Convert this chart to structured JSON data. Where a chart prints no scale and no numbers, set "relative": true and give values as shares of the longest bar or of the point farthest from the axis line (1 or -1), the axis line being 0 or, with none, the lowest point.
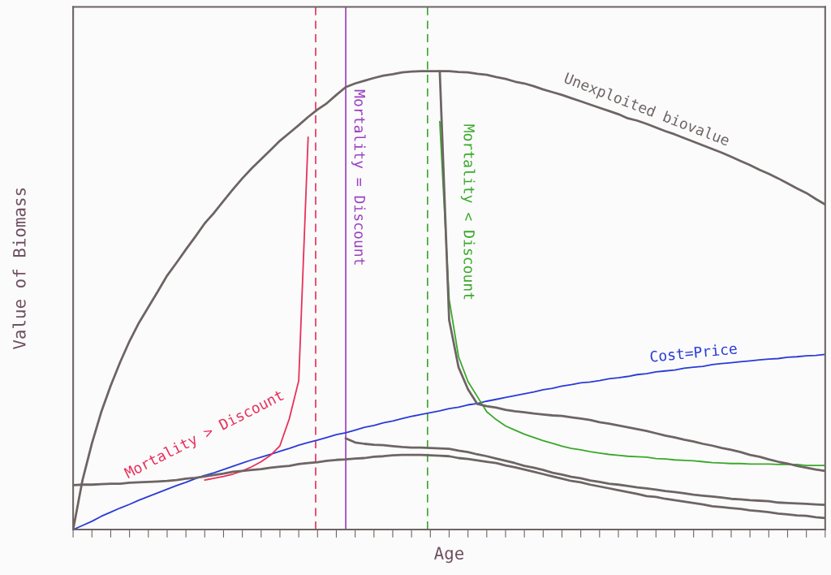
{
  "chart_data": {
    "type": "line",
    "relative": true,
    "xlabel": "Age",
    "ylabel": "Value of Biomass",
    "categories": [
      null,
      null,
      null,
      null,
      null,
      null,
      null,
      null,
      null,
      null,
      null,
      null,
      null,
      null,
      null,
      null,
      null,
      null,
      null,
      null,
      null,
      null,
      null,
      null,
      null,
      null,
      null,
      null,
      null,
      null,
      null,
      null,
      null,
      null,
      null,
      null,
      null,
      null,
      null,
      null,
      null,
      null,
      null,
      null,
      null,
      null,
      null,
      null,
      null,
      null,
      null,
      null,
      null,
      null,
      null,
      null,
      null,
      null,
      null,
      null,
      null,
      null,
      null,
      null,
      null,
      null,
      null,
      null,
      null,
      null,
      null,
      null,
      null,
      null,
      null,
      null,
      null,
      null,
      null,
      null,
      null
    ],
    "grid": false,
    "legend": false,
    "marker": "none",
    "line_style": "solid",
    "tick_labels": false,
    "annotations": [
      "Mortality = Discount"
    ],
    "series": [
      {
        "name": "Unexploited biovalue",
        "color": "#6e6464",
        "values": [
          0,
          0.108,
          0.188,
          0.257,
          0.314,
          0.365,
          0.411,
          0.451,
          0.485,
          0.519,
          0.554,
          0.582,
          0.611,
          0.639,
          0.668,
          0.691,
          0.717,
          0.742,
          0.766,
          0.788,
          0.808,
          0.828,
          0.848,
          0.865,
          0.882,
          0.9,
          0.916,
          0.93,
          0.948,
          0.965,
          0.973,
          0.979,
          0.985,
          0.99,
          0.993,
          0.997,
          0.999,
          1,
          1,
          1,
          1,
          0.998,
          0.997,
          0.994,
          0.992,
          0.987,
          0.983,
          0.977,
          0.973,
          0.967,
          0.96,
          0.954,
          0.948,
          0.941,
          0.934,
          0.927,
          0.92,
          0.913,
          0.906,
          0.897,
          0.892,
          0.885,
          0.877,
          0.869,
          0.862,
          0.854,
          0.846,
          0.838,
          0.83,
          0.822,
          0.813,
          0.804,
          0.795,
          0.785,
          0.776,
          0.766,
          0.755,
          0.744,
          0.734,
          0.721,
          0.709
        ]
      },
      {
        "name": "Cost=Price",
        "color": "#2a3bd8",
        "values": [
          0,
          0.009,
          0.018,
          0.029,
          0.038,
          0.047,
          0.055,
          0.064,
          0.072,
          0.08,
          0.088,
          0.096,
          0.103,
          0.111,
          0.118,
          0.124,
          0.131,
          0.138,
          0.145,
          0.152,
          0.158,
          0.164,
          0.171,
          0.177,
          0.184,
          0.19,
          0.195,
          0.201,
          0.207,
          0.211,
          0.217,
          0.223,
          0.227,
          0.233,
          0.237,
          0.242,
          0.247,
          0.251,
          0.255,
          0.259,
          0.264,
          0.267,
          0.272,
          0.275,
          0.28,
          0.284,
          0.288,
          0.292,
          0.296,
          0.3,
          0.305,
          0.308,
          0.313,
          0.316,
          0.32,
          0.322,
          0.325,
          0.329,
          0.331,
          0.334,
          0.338,
          0.34,
          0.344,
          0.346,
          0.348,
          0.352,
          0.354,
          0.356,
          0.36,
          0.362,
          0.364,
          0.366,
          0.368,
          0.37,
          0.372,
          0.373,
          0.376,
          0.377,
          0.379,
          0.38,
          0.382
        ]
      },
      {
        "name": "Mortality > Discount",
        "color": "#e8305a",
        "values": [
          null,
          null,
          null,
          null,
          null,
          null,
          null,
          null,
          null,
          null,
          null,
          null,
          null,
          null,
          0.108,
          0.112,
          0.116,
          0.121,
          0.128,
          0.137,
          0.148,
          0.162,
          0.183,
          0.242,
          0.325,
          0.856,
          null,
          null,
          null,
          null,
          null,
          null,
          null,
          null,
          null,
          null,
          null,
          null,
          null,
          null,
          null,
          null,
          null,
          null,
          null,
          null,
          null,
          null,
          null,
          null,
          null,
          null,
          null,
          null,
          null,
          null,
          null,
          null,
          null,
          null,
          null,
          null,
          null,
          null,
          null,
          null,
          null,
          null,
          null,
          null,
          null,
          null,
          null,
          null,
          null,
          null,
          null,
          null,
          null,
          null,
          null
        ]
      },
      {
        "name": "Mortality < Discount",
        "color": "#3aa82a",
        "values": [
          null,
          null,
          null,
          null,
          null,
          null,
          null,
          null,
          null,
          null,
          null,
          null,
          null,
          null,
          null,
          null,
          null,
          null,
          null,
          null,
          null,
          null,
          null,
          null,
          null,
          null,
          null,
          null,
          null,
          null,
          null,
          null,
          null,
          null,
          null,
          null,
          null,
          null,
          null,
          0.89,
          0.502,
          0.377,
          0.323,
          0.29,
          0.257,
          0.24,
          0.226,
          0.217,
          0.208,
          0.201,
          0.194,
          0.188,
          0.182,
          0.177,
          0.174,
          0.17,
          0.167,
          0.164,
          0.162,
          0.16,
          0.159,
          0.158,
          0.155,
          0.154,
          0.152,
          0.151,
          0.15,
          0.148,
          0.146,
          0.145,
          0.144,
          0.144,
          0.143,
          0.143,
          0.143,
          0.142,
          0.142,
          0.142,
          0.14,
          0.14,
          0.14
        ]
      },
      {
        "color": "#6e6464",
        "values": [
          0.097,
          0.098,
          0.098,
          0.099,
          0.1,
          0.1,
          0.102,
          0.103,
          0.104,
          0.105,
          0.106,
          0.108,
          0.111,
          0.113,
          0.116,
          0.119,
          0.122,
          0.126,
          0.128,
          0.13,
          0.132,
          0.135,
          0.137,
          0.139,
          0.143,
          0.145,
          0.147,
          0.15,
          0.152,
          0.153,
          0.155,
          0.156,
          0.159,
          0.16,
          0.162,
          0.163,
          0.163,
          0.163,
          0.162,
          0.161,
          0.16,
          0.156,
          0.154,
          0.151,
          0.148,
          0.145,
          0.14,
          0.136,
          0.131,
          0.126,
          0.121,
          0.116,
          0.111,
          0.106,
          0.103,
          0.098,
          0.094,
          0.09,
          0.086,
          0.082,
          0.078,
          0.073,
          0.071,
          0.067,
          0.064,
          0.061,
          0.058,
          0.055,
          0.051,
          0.049,
          0.047,
          0.045,
          0.042,
          0.04,
          0.038,
          0.035,
          0.033,
          0.031,
          0.03,
          0.027,
          0.025
        ]
      },
      {
        "color": "#6e6464",
        "values": [
          null,
          null,
          null,
          null,
          null,
          null,
          null,
          null,
          null,
          null,
          null,
          null,
          null,
          null,
          null,
          null,
          null,
          null,
          null,
          null,
          null,
          null,
          null,
          null,
          null,
          null,
          null,
          null,
          null,
          0.199,
          0.19,
          0.187,
          0.185,
          0.184,
          0.182,
          0.18,
          0.179,
          0.179,
          0.178,
          0.177,
          0.176,
          0.172,
          0.169,
          0.164,
          0.16,
          0.155,
          0.15,
          0.145,
          0.139,
          0.135,
          0.13,
          0.124,
          0.12,
          0.115,
          0.112,
          0.107,
          0.104,
          0.1,
          0.098,
          0.095,
          0.092,
          0.09,
          0.087,
          0.084,
          0.082,
          0.079,
          0.076,
          0.074,
          0.072,
          0.07,
          0.067,
          0.066,
          0.064,
          0.063,
          0.062,
          0.059,
          0.058,
          0.057,
          0.056,
          0.055,
          0.054
        ]
      },
      {
        "color": "#6e6464",
        "values": [
          null,
          null,
          null,
          null,
          null,
          null,
          null,
          null,
          null,
          null,
          null,
          null,
          null,
          null,
          null,
          null,
          null,
          null,
          null,
          null,
          null,
          null,
          null,
          null,
          null,
          null,
          null,
          null,
          null,
          null,
          null,
          null,
          null,
          null,
          null,
          null,
          null,
          null,
          null,
          1,
          0.457,
          0.354,
          0.306,
          0.274,
          0.269,
          0.266,
          0.261,
          0.258,
          0.256,
          0.253,
          0.251,
          0.249,
          0.248,
          0.245,
          0.242,
          0.239,
          0.234,
          0.231,
          0.227,
          0.223,
          0.219,
          0.215,
          0.21,
          0.205,
          0.201,
          0.196,
          0.192,
          0.187,
          0.183,
          0.178,
          0.174,
          0.169,
          0.163,
          0.159,
          0.153,
          0.148,
          0.144,
          0.139,
          0.135,
          0.131,
          0.128
        ]
      }
    ]
  }
}
